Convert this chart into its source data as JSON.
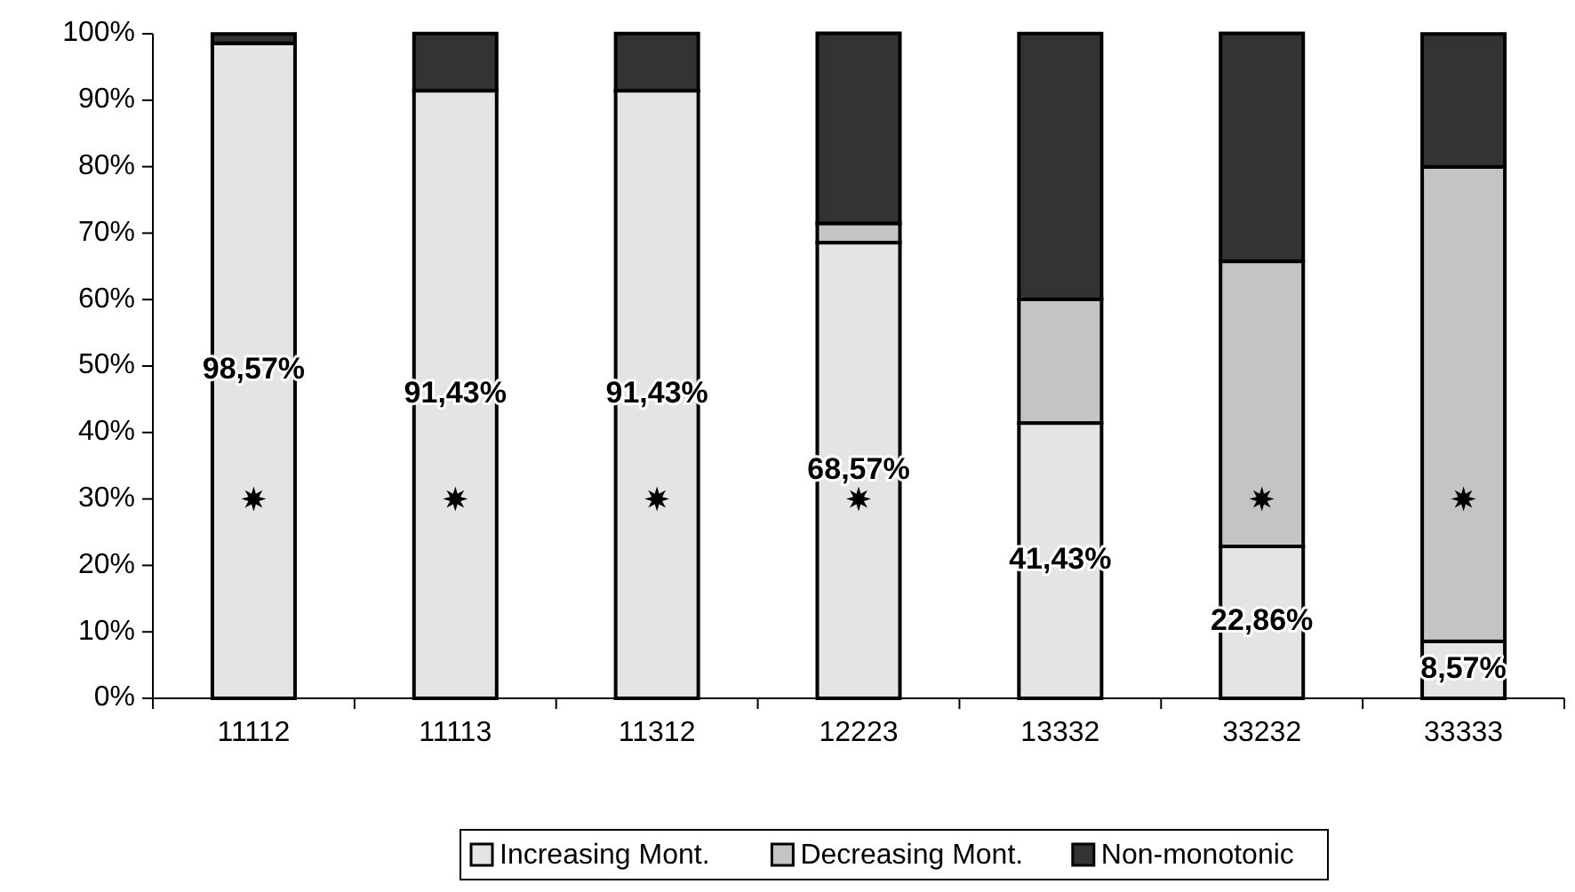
{
  "chart_data": {
    "type": "bar",
    "stacked": true,
    "categories": [
      "11112",
      "11113",
      "11312",
      "12223",
      "13332",
      "33232",
      "33333"
    ],
    "series": [
      {
        "name": "Increasing Mont.",
        "color": "#e4e4e4",
        "values": [
          98.57,
          91.43,
          91.43,
          68.57,
          41.43,
          22.86,
          8.57
        ],
        "value_labels": [
          "98,57%",
          "91,43%",
          "91,43%",
          "68,57%",
          "41,43%",
          "22,86%",
          "8,57%"
        ]
      },
      {
        "name": "Decreasing Mont.",
        "color": "#c4c4c4",
        "values": [
          0,
          0,
          0,
          2.9,
          18.6,
          42.9,
          71.4
        ]
      },
      {
        "name": "Non-monotonic",
        "color": "#333333",
        "values": [
          1.4,
          8.6,
          8.6,
          28.6,
          40,
          34.3,
          20
        ]
      },
      {
        "type": "scatter",
        "marker": "star",
        "color": "#000000",
        "x": [
          "11112",
          "11113",
          "11312",
          "12223",
          "33232",
          "33333"
        ],
        "values": [
          30,
          30,
          30,
          30,
          30,
          30
        ]
      }
    ],
    "ylim": [
      0,
      100
    ],
    "yticks": [
      {
        "value": 0,
        "label": "0%"
      },
      {
        "value": 10,
        "label": "10%"
      },
      {
        "value": 20,
        "label": "20%"
      },
      {
        "value": 30,
        "label": "30%"
      },
      {
        "value": 40,
        "label": "40%"
      },
      {
        "value": 50,
        "label": "50%"
      },
      {
        "value": 60,
        "label": "60%"
      },
      {
        "value": 70,
        "label": "70%"
      },
      {
        "value": 80,
        "label": "80%"
      },
      {
        "value": 90,
        "label": "90%"
      },
      {
        "value": 100,
        "label": "100%"
      }
    ],
    "grid": false,
    "legend": "bottom"
  }
}
